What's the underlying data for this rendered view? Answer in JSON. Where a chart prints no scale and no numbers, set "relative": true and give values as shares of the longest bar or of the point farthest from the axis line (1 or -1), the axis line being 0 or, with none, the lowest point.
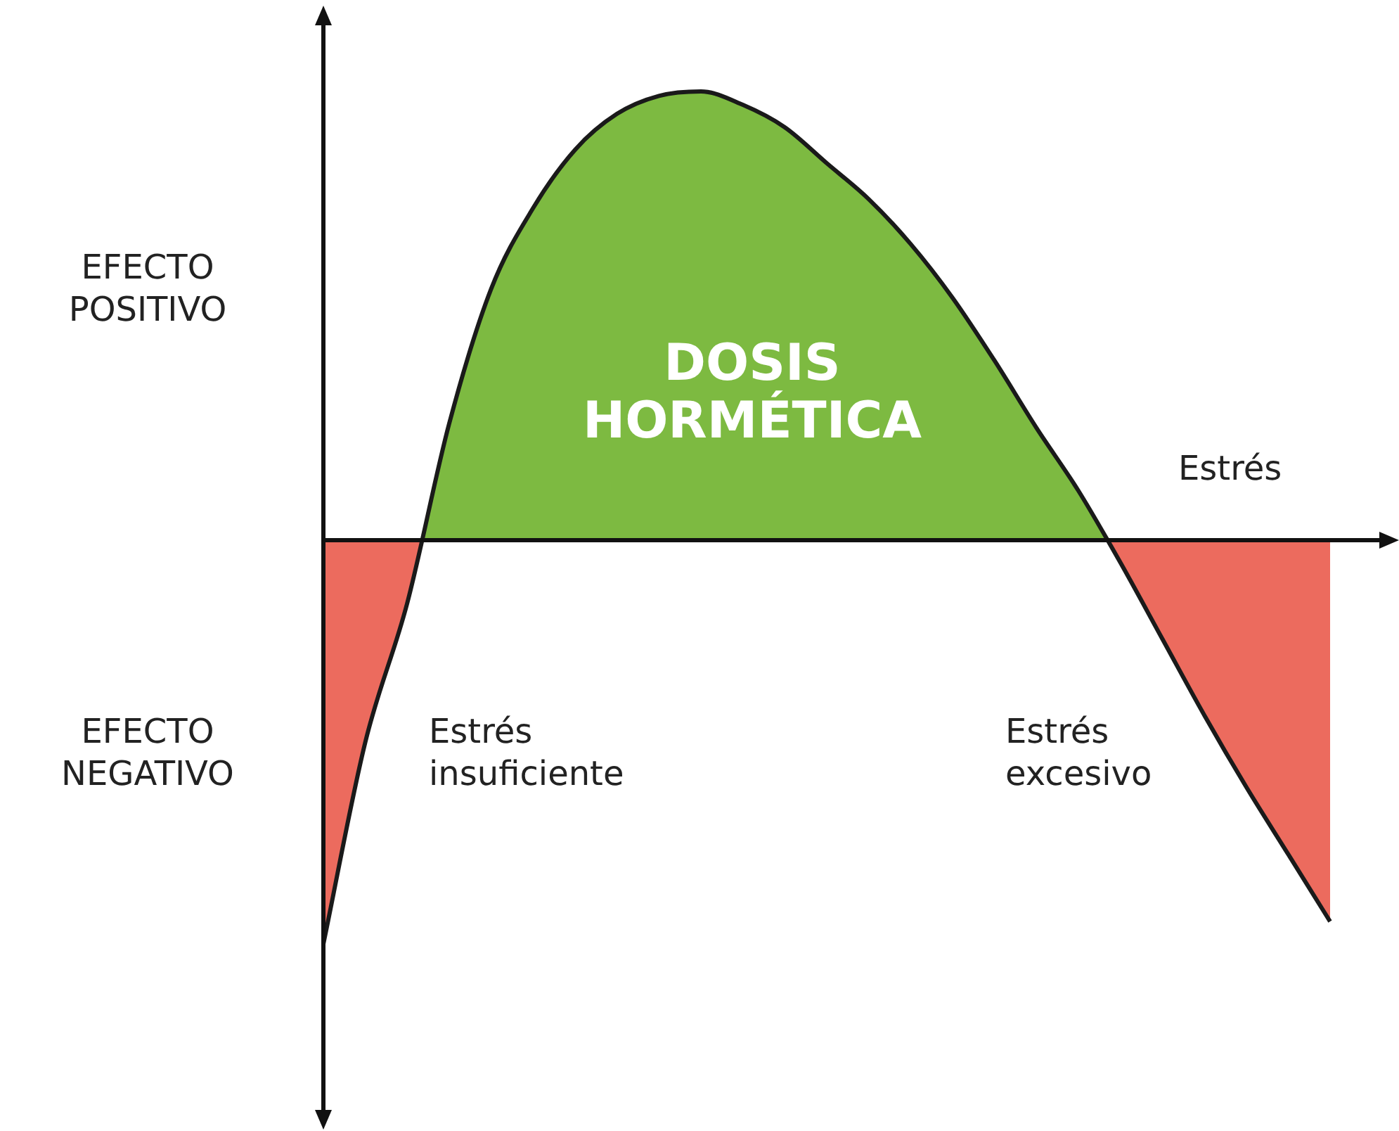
{
  "chart_data": {
    "type": "area",
    "relative": true,
    "xlabel": "Estrés",
    "categories": [
      null,
      null,
      null,
      null,
      null,
      null,
      null,
      null,
      null,
      null,
      null,
      null,
      null,
      null,
      null,
      null,
      null,
      null,
      null,
      null,
      null,
      null,
      null,
      null,
      null
    ],
    "series": [
      {
        "color": "#7dba41",
        "colors": [
          "#ec6b5e",
          "#ec6b5e",
          "#ec6b5e",
          "#7dba41",
          "#7dba41",
          "#7dba41",
          "#7dba41",
          "#7dba41",
          "#7dba41",
          "#7dba41",
          "#7dba41",
          "#7dba41",
          "#7dba41",
          "#7dba41",
          "#7dba41",
          "#7dba41",
          "#7dba41",
          "#7dba41",
          "#7dba41",
          "#ec6b5e",
          "#ec6b5e",
          "#ec6b5e",
          "#ec6b5e",
          "#ec6b5e",
          "#ec6b5e"
        ],
        "values": [
          -0.9,
          -0.45,
          -0.14,
          0.26,
          0.56,
          0.74,
          0.87,
          0.95,
          0.99,
          1,
          0.97,
          0.92,
          0.84,
          0.76,
          0.66,
          0.54,
          0.4,
          0.25,
          0.11,
          -0.05,
          -0.22,
          -0.39,
          -0.55,
          -0.7,
          -0.85
        ]
      }
    ],
    "annotations": [
      "EFECTO\nPOSITIVO",
      "EFECTO\nNEGATIVO",
      "DOSIS\nHORMÉTICA",
      "Estrés\ninsuficiente",
      "Estrés\nexcesivo"
    ],
    "legend": false,
    "marker": "none"
  }
}
